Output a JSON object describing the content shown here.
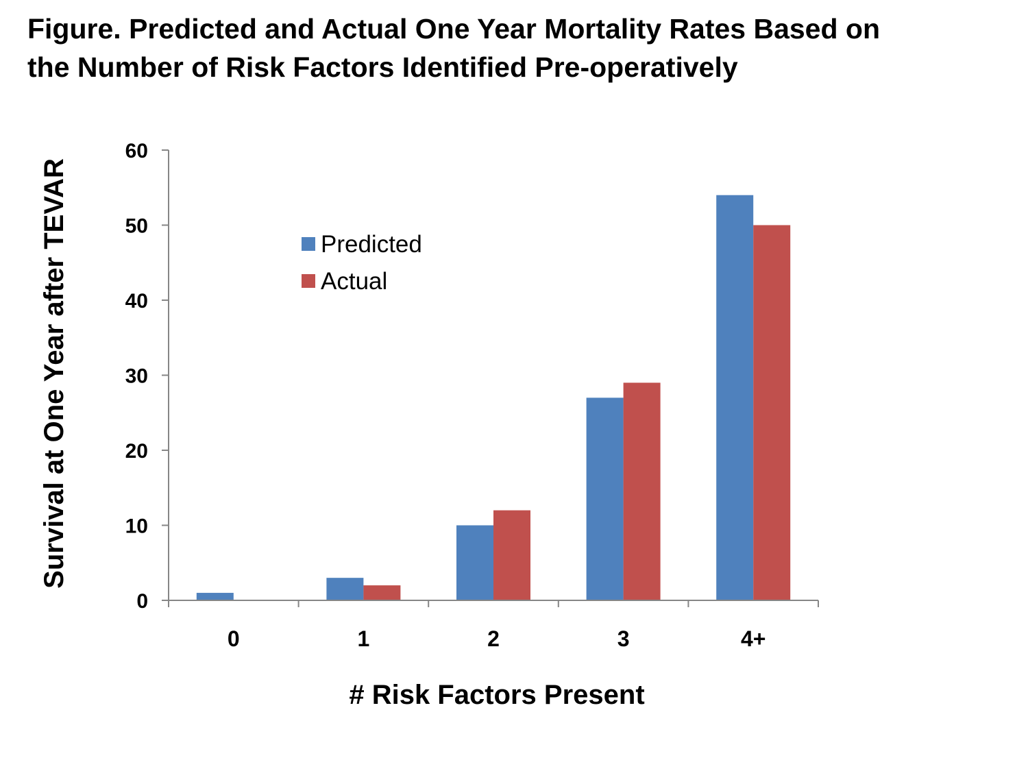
{
  "title_lines": [
    "Figure. Predicted and Actual One Year Mortality Rates Based on",
    "the Number of Risk Factors Identified Pre-operatively"
  ],
  "chart_data": {
    "type": "bar",
    "title": "Figure. Predicted and Actual One Year Mortality Rates Based on the Number of Risk Factors Identified Pre-operatively",
    "categories": [
      "0",
      "1",
      "2",
      "3",
      "4+"
    ],
    "series": [
      {
        "name": "Predicted",
        "color": "#4F81BD",
        "values": [
          1,
          3,
          10,
          27,
          54
        ]
      },
      {
        "name": "Actual",
        "color": "#C0504D",
        "values": [
          0,
          2,
          12,
          29,
          50
        ]
      }
    ],
    "xlabel": "# Risk Factors Present",
    "ylabel": "Survival at One Year after TEVAR",
    "ylim": [
      0,
      60
    ],
    "yticks": [
      0,
      10,
      20,
      30,
      40,
      50,
      60
    ],
    "grid": false,
    "legend_position": "top-left"
  }
}
